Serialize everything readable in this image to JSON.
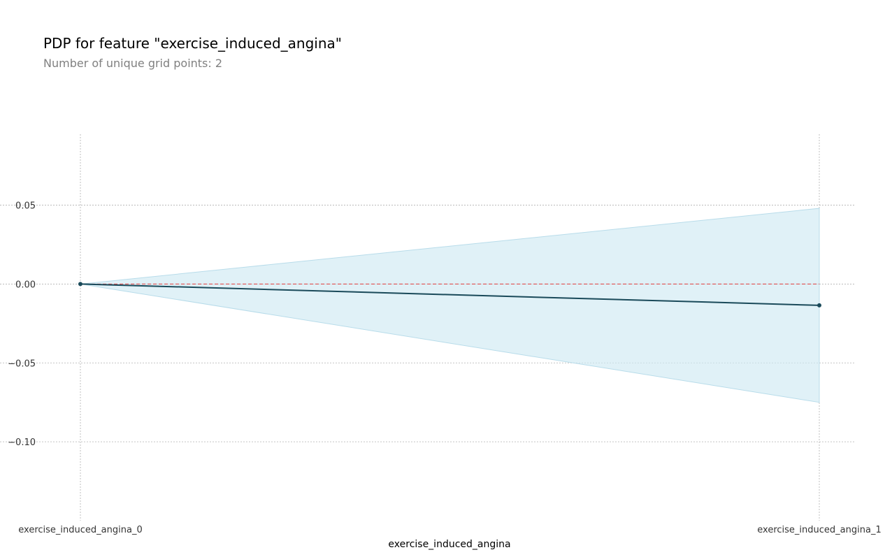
{
  "chart_data": {
    "type": "line",
    "title": "PDP for feature \"exercise_induced_angina\"",
    "subtitle": "Number of unique grid points: 2",
    "xlabel": "exercise_induced_angina",
    "ylabel": "",
    "categories": [
      "exercise_induced_angina_0",
      "exercise_induced_angina_1"
    ],
    "series": [
      {
        "values": [
          0.0,
          -0.0135
        ]
      }
    ],
    "band": {
      "lower": [
        0.0,
        -0.075
      ],
      "upper": [
        0.0,
        0.048
      ]
    },
    "baseline": 0.0,
    "ylim": [
      -0.15,
      0.095
    ],
    "yticks": [
      0.05,
      0.0,
      -0.05,
      -0.1
    ],
    "ytick_labels": [
      "0.05",
      "0.00",
      "−0.05",
      "−0.10"
    ],
    "grid": true,
    "colors": {
      "line": "#1a4a5a",
      "band": "#cfe9f3",
      "baseline": "#e05050",
      "grid": "#b0b0b0"
    }
  }
}
